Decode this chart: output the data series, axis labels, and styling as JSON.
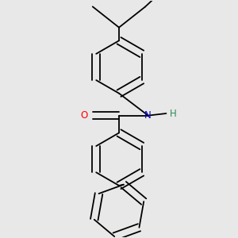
{
  "background_color": "#e8e8e8",
  "line_color": "#000000",
  "O_color": "#ff0000",
  "N_color": "#0000cc",
  "H_color": "#2e8b57",
  "line_width": 1.3,
  "figsize": [
    3.0,
    3.0
  ],
  "dpi": 100,
  "xlim": [
    -1.2,
    1.2
  ],
  "ylim": [
    -1.6,
    1.8
  ]
}
